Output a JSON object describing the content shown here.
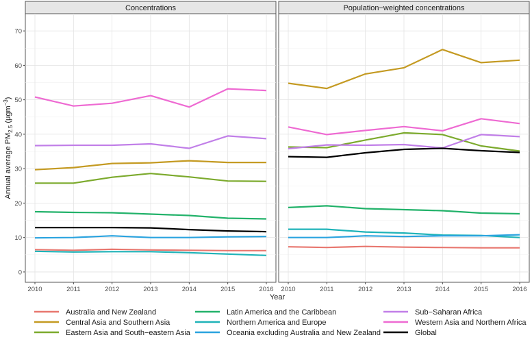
{
  "chart_data": {
    "type": "line",
    "xlabel": "Year",
    "ylabel_prefix": "Annual average PM",
    "ylabel_sub": "2.5",
    "ylabel_unit_open": " (μgm",
    "ylabel_unit_sup": "−3",
    "ylabel_unit_close": ")",
    "ylim": [
      -3,
      75
    ],
    "yticks": [
      0,
      10,
      20,
      30,
      40,
      50,
      60,
      70
    ],
    "xticks": [
      2010,
      2011,
      2012,
      2013,
      2014,
      2015,
      2016
    ],
    "x": [
      2010,
      2011,
      2012,
      2013,
      2014,
      2015,
      2016
    ],
    "grid": true,
    "legend_position": "bottom",
    "series_styles": [
      {
        "name": "Australia and New Zealand",
        "color": "#e8776f"
      },
      {
        "name": "Central Asia and Southern Asia",
        "color": "#c49a22"
      },
      {
        "name": "Eastern Asia and South−eastern Asia",
        "color": "#7caa2d"
      },
      {
        "name": "Latin America and the Caribbean",
        "color": "#22b26a"
      },
      {
        "name": "Northern America and Europe",
        "color": "#1fb3b8"
      },
      {
        "name": "Oceania excluding Australia and New Zealand",
        "color": "#2aa3df"
      },
      {
        "name": "Sub−Saharan Africa",
        "color": "#c17fe8"
      },
      {
        "name": "Western Asia and Northern Africa",
        "color": "#ee6ad2"
      },
      {
        "name": "Global",
        "color": "#000000"
      }
    ],
    "panels": [
      {
        "title": "Concentrations",
        "series": [
          {
            "name": "Australia and New Zealand",
            "values": [
              6.5,
              6.3,
              6.6,
              6.4,
              6.3,
              6.2,
              6.2
            ]
          },
          {
            "name": "Central Asia and Southern Asia",
            "values": [
              29.7,
              30.3,
              31.5,
              31.7,
              32.3,
              31.8,
              31.8
            ]
          },
          {
            "name": "Eastern Asia and South−eastern Asia",
            "values": [
              25.8,
              25.8,
              27.5,
              28.6,
              27.6,
              26.4,
              26.3
            ]
          },
          {
            "name": "Latin America and the Caribbean",
            "values": [
              17.5,
              17.3,
              17.2,
              16.8,
              16.4,
              15.6,
              15.4
            ]
          },
          {
            "name": "Northern America and Europe",
            "values": [
              6.0,
              5.8,
              5.9,
              5.9,
              5.6,
              5.2,
              4.8
            ]
          },
          {
            "name": "Oceania excluding Australia and New Zealand",
            "values": [
              9.9,
              10.0,
              10.5,
              10.0,
              10.0,
              10.2,
              10.3
            ]
          },
          {
            "name": "Sub−Saharan Africa",
            "values": [
              36.7,
              36.8,
              36.8,
              37.2,
              35.9,
              39.5,
              38.7
            ]
          },
          {
            "name": "Western Asia and Northern Africa",
            "values": [
              50.8,
              48.2,
              49.0,
              51.2,
              47.9,
              53.2,
              52.7
            ]
          },
          {
            "name": "Global",
            "values": [
              12.9,
              12.9,
              12.9,
              12.8,
              12.3,
              11.9,
              11.7
            ]
          }
        ]
      },
      {
        "title": "Population−weighted concentrations",
        "series": [
          {
            "name": "Australia and New Zealand",
            "values": [
              7.3,
              7.1,
              7.4,
              7.2,
              7.1,
              7.0,
              7.0
            ]
          },
          {
            "name": "Central Asia and Southern Asia",
            "values": [
              54.8,
              53.3,
              57.5,
              59.3,
              64.6,
              60.8,
              61.5
            ]
          },
          {
            "name": "Eastern Asia and South−eastern Asia",
            "values": [
              36.3,
              36.1,
              38.3,
              40.4,
              39.9,
              36.6,
              35.1
            ]
          },
          {
            "name": "Latin America and the Caribbean",
            "values": [
              18.7,
              19.2,
              18.4,
              18.1,
              17.8,
              17.1,
              16.9
            ]
          },
          {
            "name": "Northern America and Europe",
            "values": [
              12.4,
              12.4,
              11.6,
              11.3,
              10.7,
              10.6,
              10.0
            ]
          },
          {
            "name": "Oceania excluding Australia and New Zealand",
            "values": [
              10.0,
              10.0,
              10.5,
              10.3,
              10.5,
              10.5,
              10.8
            ]
          },
          {
            "name": "Sub−Saharan Africa",
            "values": [
              35.8,
              36.9,
              36.8,
              37.0,
              36.0,
              39.9,
              39.3
            ]
          },
          {
            "name": "Western Asia and Northern Africa",
            "values": [
              42.1,
              39.9,
              41.1,
              42.2,
              41.0,
              44.5,
              43.1
            ]
          },
          {
            "name": "Global",
            "values": [
              33.5,
              33.3,
              34.6,
              35.6,
              35.9,
              35.2,
              34.7
            ]
          }
        ]
      }
    ]
  }
}
